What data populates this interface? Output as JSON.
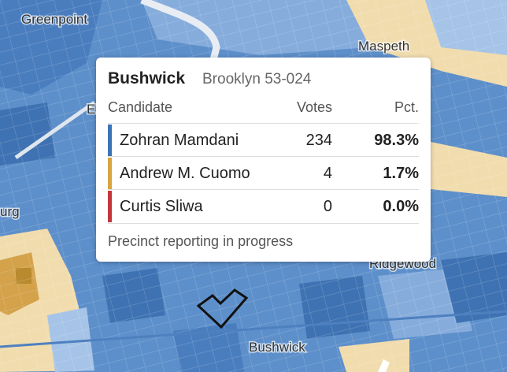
{
  "map": {
    "places": [
      "Greenpoint",
      "Maspeth",
      "E",
      "urg",
      "Ridgewood",
      "Bushwick"
    ]
  },
  "tooltip": {
    "title": "Bushwick",
    "subtitle": "Brooklyn 53-024",
    "headers": [
      "Candidate",
      "Votes",
      "Pct."
    ],
    "rows": [
      {
        "name": "Zohran Mamdani",
        "votes": 234,
        "pct": "98.3%",
        "color": "#3b74b6"
      },
      {
        "name": "Andrew M. Cuomo",
        "votes": 4,
        "pct": "1.7%",
        "color": "#d9a443"
      },
      {
        "name": "Curtis Sliwa",
        "votes": 0,
        "pct": "0.0%",
        "color": "#c5363c"
      }
    ],
    "footer": "Precinct reporting in progress"
  }
}
